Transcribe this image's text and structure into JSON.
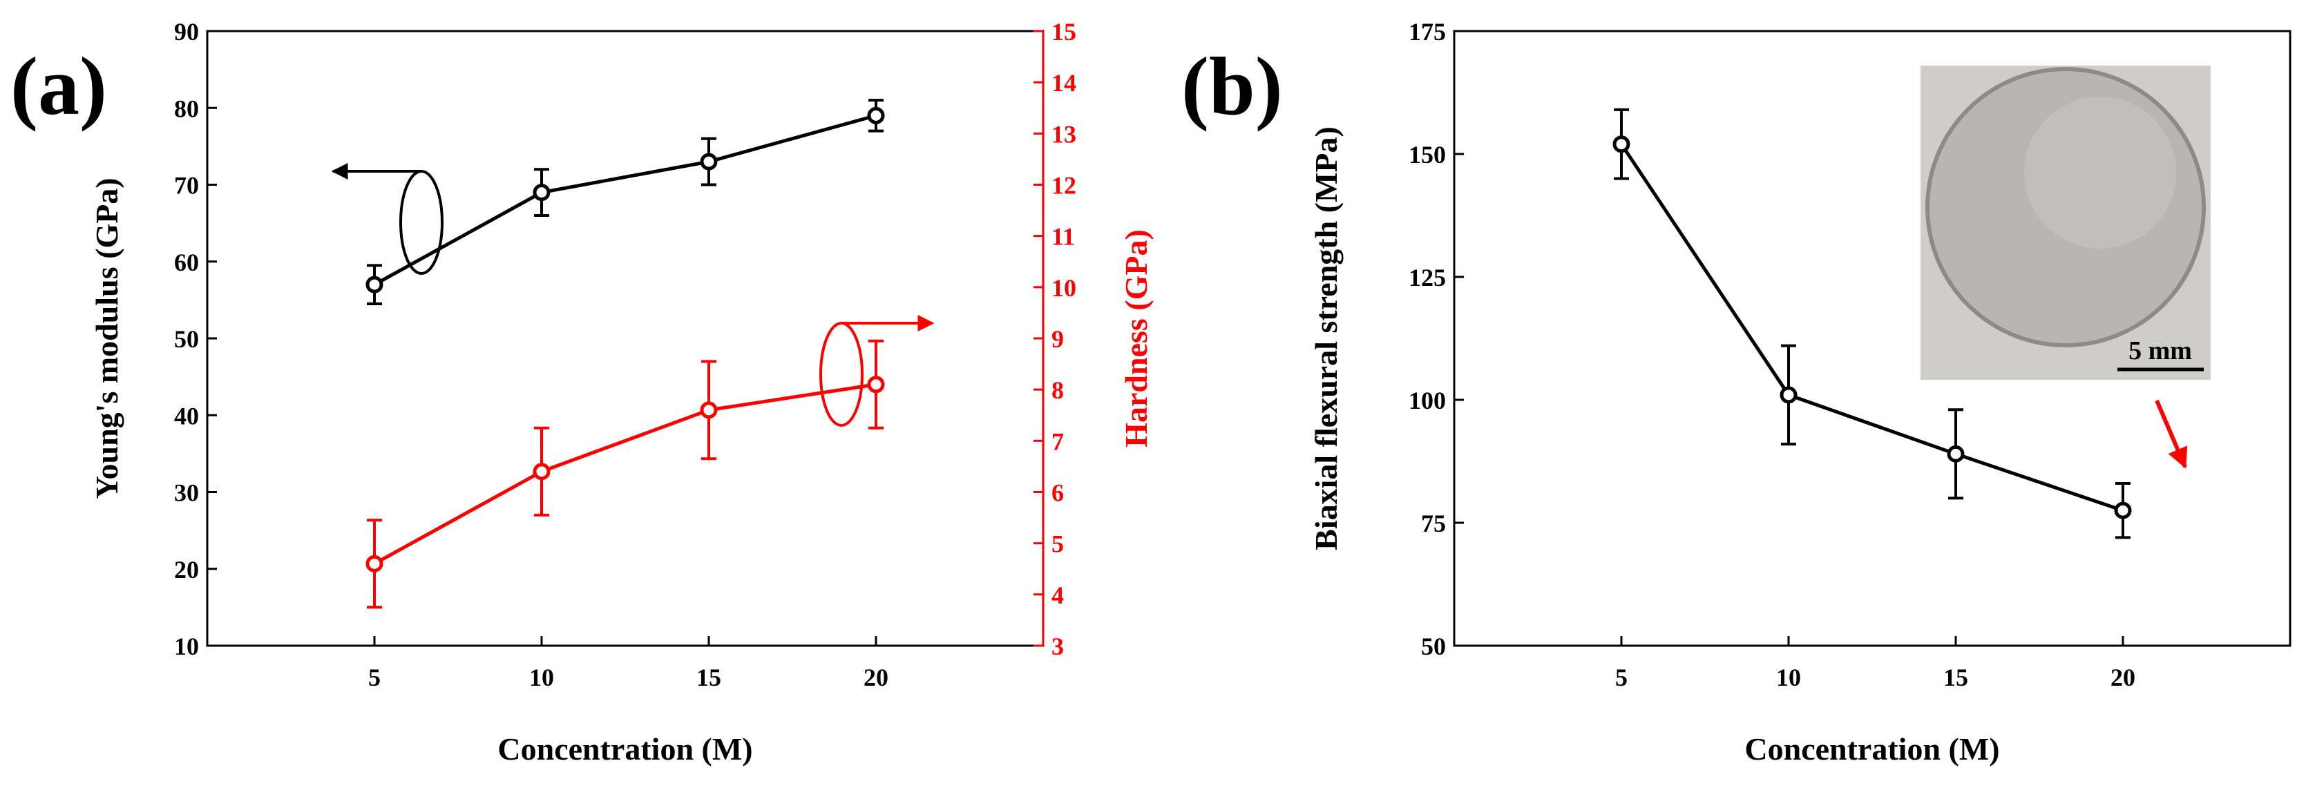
{
  "figure": {
    "panels": [
      "(a)",
      "(b)"
    ]
  },
  "colors": {
    "black": "#000000",
    "red": "#ff0000",
    "inset_bg": "#cfcdc8",
    "inset_disk": "#b9b6af"
  },
  "chart_data": [
    {
      "panel": "(a)",
      "type": "line",
      "title": "",
      "xlabel": "Concentration (M)",
      "x": [
        5,
        10,
        15,
        20
      ],
      "xlim": [
        0,
        25
      ],
      "xticks": [
        5,
        10,
        15,
        20
      ],
      "grid": false,
      "series": [
        {
          "name": "Young's modulus",
          "axis": "left",
          "color": "#000000",
          "ylabel": "Young's modulus (GPa)",
          "ylim": [
            10,
            90
          ],
          "yticks": [
            10,
            20,
            30,
            40,
            50,
            60,
            70,
            80,
            90
          ],
          "values": [
            57,
            69,
            73,
            79
          ],
          "errors": [
            2.5,
            3,
            3,
            2
          ]
        },
        {
          "name": "Hardness",
          "axis": "right",
          "color": "#ff0000",
          "ylabel": "Hardness (GPa)",
          "ylim": [
            3,
            15
          ],
          "yticks": [
            3,
            4,
            5,
            6,
            7,
            8,
            9,
            10,
            11,
            12,
            13,
            14,
            15
          ],
          "values": [
            4.6,
            6.4,
            7.6,
            8.1
          ],
          "errors": [
            0.85,
            0.85,
            0.95,
            0.85
          ]
        }
      ],
      "annotations": [
        {
          "type": "ellipse-arrow",
          "series": "Young's modulus",
          "points_to": "left axis"
        },
        {
          "type": "ellipse-arrow",
          "series": "Hardness",
          "points_to": "right axis"
        }
      ]
    },
    {
      "panel": "(b)",
      "type": "line",
      "title": "",
      "xlabel": "Concentration (M)",
      "ylabel": "Biaxial flexural strength (MPa)",
      "x": [
        5,
        10,
        15,
        20
      ],
      "xlim": [
        0,
        25
      ],
      "xticks": [
        5,
        10,
        15,
        20
      ],
      "ylim": [
        50,
        175
      ],
      "yticks": [
        50,
        75,
        100,
        125,
        150,
        175
      ],
      "grid": false,
      "series": [
        {
          "name": "Biaxial flexural strength",
          "color": "#000000",
          "values": [
            152,
            101,
            89,
            77.5
          ],
          "errors": [
            7,
            10,
            9,
            5.5
          ]
        }
      ],
      "inset": {
        "description": "photo of disk sample",
        "scale_bar_label": "5 mm",
        "arrow_target_x": 20
      }
    }
  ]
}
